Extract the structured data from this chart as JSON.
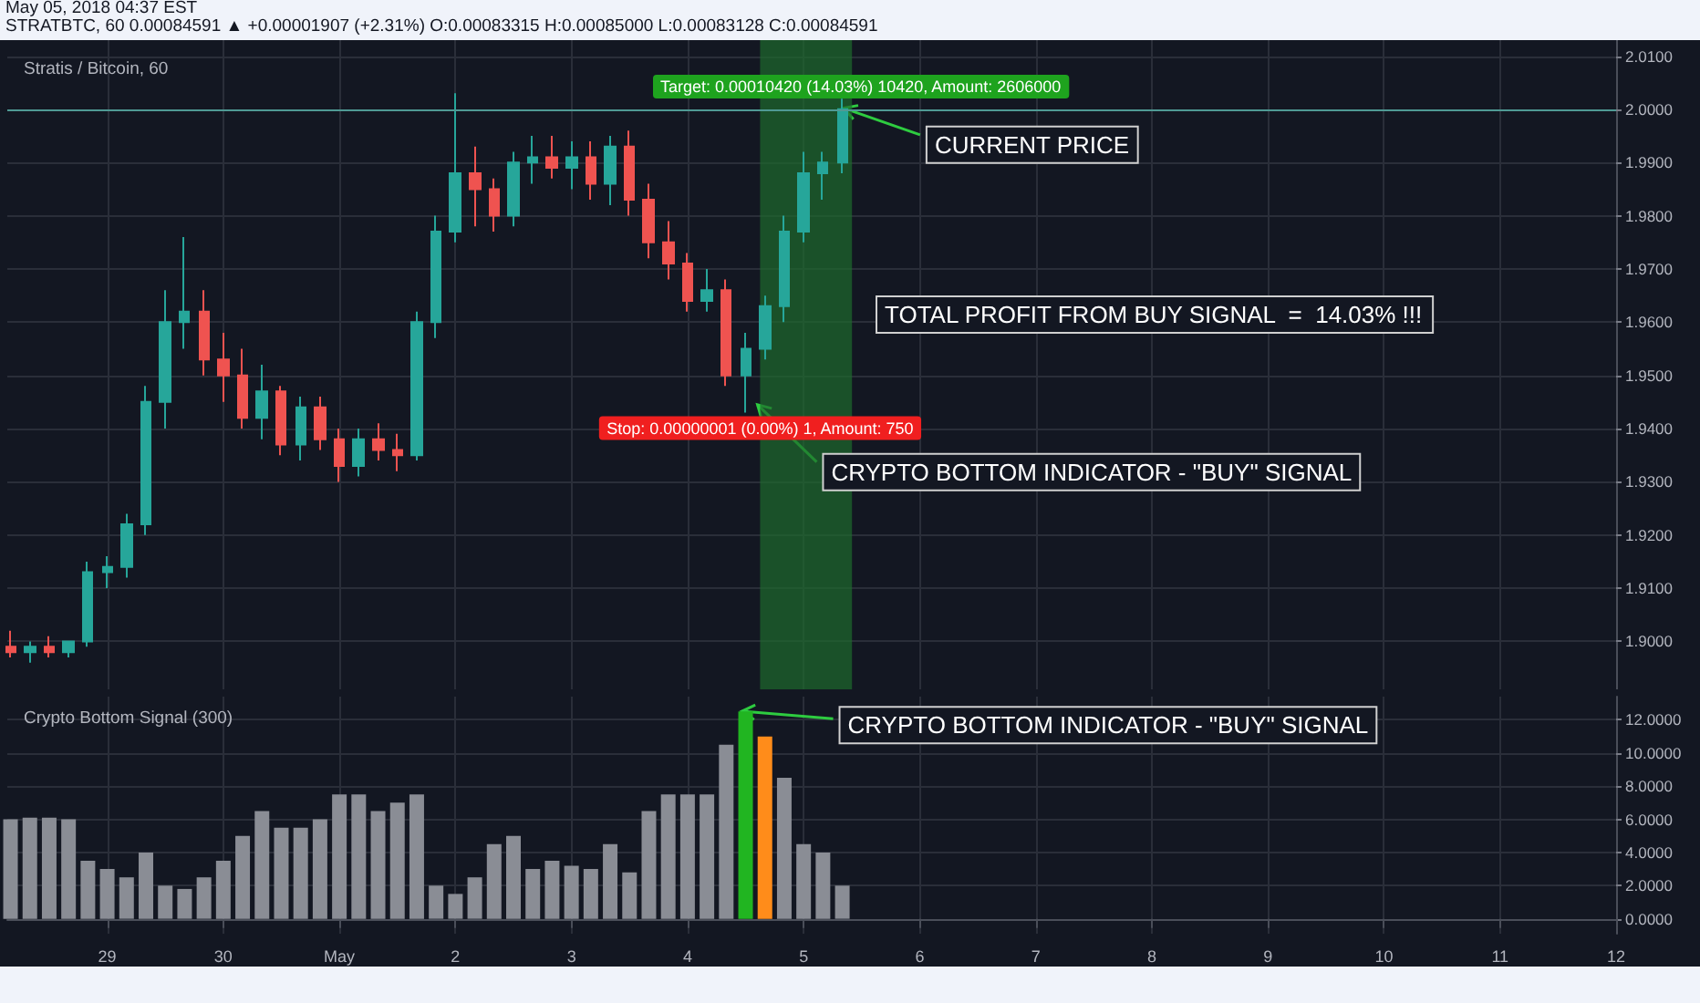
{
  "chart_data": [
    {
      "type": "candlestick",
      "title": "Stratis / Bitcoin, 60",
      "subtitle": "May 05, 2018 04:37 EST",
      "x": [
        "2018-04-28T04:00",
        "2018-04-28T08:00",
        "2018-04-28T12:00",
        "2018-04-28T16:00",
        "2018-04-28T20:00",
        "2018-04-29T00:00",
        "2018-04-29T04:00",
        "2018-04-29T08:00",
        "2018-04-29T12:00",
        "2018-04-29T16:00",
        "2018-04-29T20:00",
        "2018-04-30T00:00",
        "2018-04-30T04:00",
        "2018-04-30T08:00",
        "2018-04-30T12:00",
        "2018-04-30T16:00",
        "2018-04-30T20:00",
        "2018-05-01T00:00",
        "2018-05-01T04:00",
        "2018-05-01T08:00",
        "2018-05-01T12:00",
        "2018-05-01T16:00",
        "2018-05-01T20:00",
        "2018-05-02T00:00",
        "2018-05-02T04:00",
        "2018-05-02T08:00",
        "2018-05-02T12:00",
        "2018-05-02T16:00",
        "2018-05-02T20:00",
        "2018-05-03T00:00",
        "2018-05-03T04:00",
        "2018-05-03T08:00",
        "2018-05-03T12:00",
        "2018-05-03T16:00",
        "2018-05-03T20:00",
        "2018-05-04T00:00",
        "2018-05-04T04:00",
        "2018-05-04T08:00",
        "2018-05-04T12:00",
        "2018-05-04T16:00",
        "2018-05-04T20:00",
        "2018-05-05T00:00",
        "2018-05-05T04:00",
        "2018-05-05T08:00"
      ],
      "ohlc": [
        [
          1.899,
          1.902,
          1.897,
          1.898
        ],
        [
          1.898,
          1.9,
          1.896,
          1.899
        ],
        [
          1.899,
          1.901,
          1.897,
          1.898
        ],
        [
          1.898,
          1.9,
          1.897,
          1.9
        ],
        [
          1.9,
          1.915,
          1.899,
          1.913
        ],
        [
          1.913,
          1.916,
          1.91,
          1.914
        ],
        [
          1.914,
          1.924,
          1.912,
          1.922
        ],
        [
          1.922,
          1.948,
          1.92,
          1.945
        ],
        [
          1.945,
          1.966,
          1.94,
          1.96
        ],
        [
          1.96,
          1.976,
          1.955,
          1.962
        ],
        [
          1.962,
          1.966,
          1.95,
          1.953
        ],
        [
          1.953,
          1.958,
          1.945,
          1.95
        ],
        [
          1.95,
          1.955,
          1.94,
          1.942
        ],
        [
          1.942,
          1.952,
          1.938,
          1.947
        ],
        [
          1.947,
          1.948,
          1.935,
          1.937
        ],
        [
          1.937,
          1.946,
          1.934,
          1.944
        ],
        [
          1.944,
          1.946,
          1.936,
          1.938
        ],
        [
          1.938,
          1.94,
          1.93,
          1.933
        ],
        [
          1.933,
          1.94,
          1.931,
          1.938
        ],
        [
          1.938,
          1.941,
          1.934,
          1.936
        ],
        [
          1.936,
          1.939,
          1.932,
          1.935
        ],
        [
          1.935,
          1.962,
          1.934,
          1.96
        ],
        [
          1.96,
          1.98,
          1.957,
          1.977
        ],
        [
          1.977,
          2.003,
          1.975,
          1.988
        ],
        [
          1.988,
          1.993,
          1.978,
          1.985
        ],
        [
          1.985,
          1.987,
          1.977,
          1.98
        ],
        [
          1.98,
          1.992,
          1.978,
          1.99
        ],
        [
          1.99,
          1.995,
          1.986,
          1.991
        ],
        [
          1.991,
          1.995,
          1.987,
          1.989
        ],
        [
          1.989,
          1.994,
          1.985,
          1.991
        ],
        [
          1.991,
          1.994,
          1.983,
          1.986
        ],
        [
          1.986,
          1.995,
          1.982,
          1.993
        ],
        [
          1.993,
          1.996,
          1.98,
          1.983
        ],
        [
          1.983,
          1.986,
          1.972,
          1.975
        ],
        [
          1.975,
          1.979,
          1.968,
          1.971
        ],
        [
          1.971,
          1.973,
          1.962,
          1.964
        ],
        [
          1.964,
          1.97,
          1.962,
          1.966
        ],
        [
          1.966,
          1.968,
          1.948,
          1.95
        ],
        [
          1.95,
          1.958,
          1.943,
          1.955
        ],
        [
          1.955,
          1.965,
          1.953,
          1.963
        ],
        [
          1.963,
          1.98,
          1.96,
          1.977
        ],
        [
          1.977,
          1.992,
          1.975,
          1.988
        ],
        [
          1.988,
          1.992,
          1.983,
          1.99
        ],
        [
          1.99,
          2.002,
          1.988,
          2.0
        ]
      ],
      "colors": [
        "#ef5350",
        "#26a69a",
        "#ef5350",
        "#26a69a",
        "#26a69a",
        "#26a69a",
        "#26a69a",
        "#26a69a",
        "#26a69a",
        "#26a69a",
        "#ef5350",
        "#ef5350",
        "#ef5350",
        "#26a69a",
        "#ef5350",
        "#26a69a",
        "#ef5350",
        "#ef5350",
        "#26a69a",
        "#ef5350",
        "#ef5350",
        "#26a69a",
        "#26a69a",
        "#26a69a",
        "#ef5350",
        "#ef5350",
        "#26a69a",
        "#26a69a",
        "#ef5350",
        "#26a69a",
        "#ef5350",
        "#26a69a",
        "#ef5350",
        "#ef5350",
        "#ef5350",
        "#ef5350",
        "#26a69a",
        "#ef5350",
        "#26a69a",
        "#26a69a",
        "#26a69a",
        "#26a69a",
        "#26a69a",
        "#26a69a"
      ],
      "xlim": [
        "2018-04-28T03:20",
        "2018-05-12T00:00"
      ],
      "xticks": [
        {
          "value": "2018-04-29",
          "label": null
        },
        {
          "value": "2018-04-30",
          "label": null
        },
        {
          "value": "2018-05-01",
          "label": null
        },
        {
          "value": "2018-05-02",
          "label": null
        },
        {
          "value": "2018-05-03",
          "label": null
        },
        {
          "value": "2018-05-04",
          "label": null
        },
        {
          "value": "2018-05-05",
          "label": null
        },
        {
          "value": "2018-05-06",
          "label": null
        },
        {
          "value": "2018-05-07",
          "label": null
        },
        {
          "value": "2018-05-08",
          "label": null
        },
        {
          "value": "2018-05-09",
          "label": null
        },
        {
          "value": "2018-05-10",
          "label": null
        },
        {
          "value": "2018-05-11",
          "label": null
        }
      ],
      "ylim": [
        1.891,
        2.013
      ],
      "yticks": [
        {
          "value": 1.9,
          "label": "1.9000"
        },
        {
          "value": 1.91,
          "label": "1.9100"
        },
        {
          "value": 1.92,
          "label": "1.9200"
        },
        {
          "value": 1.93,
          "label": "1.9300"
        },
        {
          "value": 1.94,
          "label": "1.9400"
        },
        {
          "value": 1.95,
          "label": "1.9500"
        },
        {
          "value": 1.96,
          "label": "1.9600"
        },
        {
          "value": 1.97,
          "label": "1.9700"
        },
        {
          "value": 1.98,
          "label": "1.9800"
        },
        {
          "value": 1.99,
          "label": "1.9900"
        },
        {
          "value": 2.0,
          "label": "2.0000"
        },
        {
          "value": 2.01,
          "label": "2.0100"
        }
      ],
      "tick_labels": "y",
      "grid": true,
      "ref_lines": [
        {
          "axis": "y",
          "value": 2.0,
          "color": "#4f9a94"
        }
      ],
      "bands": [
        {
          "axis": "x",
          "from": "2018-05-04T15:00",
          "to": "2018-05-05T10:00",
          "color": "#1e6b2c"
        }
      ],
      "annotations": [
        "Target: 0.00010420 (14.03%) 10420, Amount: 2606000",
        {
          "text": "Stop: 0.00000001 (0.00%) 1, Amount: 750",
          "x": "2018-05-04T15:00",
          "y": 1.943
        },
        {
          "text": "CURRENT PRICE",
          "x": "2018-05-05T09:00",
          "y": 2.0
        },
        "TOTAL PROFIT FROM BUY SIGNAL  =  14.03% !!!",
        {
          "text": "CRYPTO BOTTOM INDICATOR - \"BUY\" SIGNAL",
          "x": "2018-05-04T15:00",
          "y": 1.944
        },
        "STRATBTC, 60 0.00084591 ▲ +0.00001907 (+2.31%) O:0.00083315 H:0.00085000 L:0.00083128 C:0.00084591"
      ]
    },
    {
      "type": "bar",
      "title": "Crypto Bottom Signal (300)",
      "x": [
        "2018-04-28T04:00",
        "2018-04-28T08:00",
        "2018-04-28T12:00",
        "2018-04-28T16:00",
        "2018-04-28T20:00",
        "2018-04-29T00:00",
        "2018-04-29T04:00",
        "2018-04-29T08:00",
        "2018-04-29T12:00",
        "2018-04-29T16:00",
        "2018-04-29T20:00",
        "2018-04-30T00:00",
        "2018-04-30T04:00",
        "2018-04-30T08:00",
        "2018-04-30T12:00",
        "2018-04-30T16:00",
        "2018-04-30T20:00",
        "2018-05-01T00:00",
        "2018-05-01T04:00",
        "2018-05-01T08:00",
        "2018-05-01T12:00",
        "2018-05-01T16:00",
        "2018-05-01T20:00",
        "2018-05-02T00:00",
        "2018-05-02T04:00",
        "2018-05-02T08:00",
        "2018-05-02T12:00",
        "2018-05-02T16:00",
        "2018-05-02T20:00",
        "2018-05-03T00:00",
        "2018-05-03T04:00",
        "2018-05-03T08:00",
        "2018-05-03T12:00",
        "2018-05-03T16:00",
        "2018-05-03T20:00",
        "2018-05-04T00:00",
        "2018-05-04T04:00",
        "2018-05-04T08:00",
        "2018-05-04T12:00",
        "2018-05-04T16:00",
        "2018-05-04T20:00",
        "2018-05-05T00:00",
        "2018-05-05T04:00",
        "2018-05-05T08:00"
      ],
      "values": [
        6.0,
        6.1,
        6.1,
        6.0,
        3.5,
        3.0,
        2.5,
        4.0,
        2.0,
        1.8,
        2.5,
        3.5,
        5.0,
        6.5,
        5.5,
        5.5,
        6.0,
        7.5,
        7.5,
        6.5,
        7.0,
        7.5,
        2.0,
        1.5,
        2.5,
        4.5,
        5.0,
        3.0,
        3.5,
        3.2,
        3.0,
        4.5,
        2.8,
        6.5,
        7.5,
        7.5,
        7.5,
        10.5,
        12.5,
        11.0,
        8.5,
        4.5,
        4.0,
        2.0
      ],
      "colors": [
        "#8a8d95",
        "#8a8d95",
        "#8a8d95",
        "#8a8d95",
        "#8a8d95",
        "#8a8d95",
        "#8a8d95",
        "#8a8d95",
        "#8a8d95",
        "#8a8d95",
        "#8a8d95",
        "#8a8d95",
        "#8a8d95",
        "#8a8d95",
        "#8a8d95",
        "#8a8d95",
        "#8a8d95",
        "#8a8d95",
        "#8a8d95",
        "#8a8d95",
        "#8a8d95",
        "#8a8d95",
        "#8a8d95",
        "#8a8d95",
        "#8a8d95",
        "#8a8d95",
        "#8a8d95",
        "#8a8d95",
        "#8a8d95",
        "#8a8d95",
        "#8a8d95",
        "#8a8d95",
        "#8a8d95",
        "#8a8d95",
        "#8a8d95",
        "#8a8d95",
        "#8a8d95",
        "#8a8d95",
        "#21b521",
        "#ff8c1a",
        "#8a8d95",
        "#8a8d95",
        "#8a8d95",
        "#8a8d95"
      ],
      "xlim": [
        "2018-04-28T03:20",
        "2018-05-12T00:00"
      ],
      "xticks": [
        {
          "value": "2018-04-29",
          "label": "29"
        },
        {
          "value": "2018-04-30",
          "label": "30"
        },
        {
          "value": "2018-05-01",
          "label": "May"
        },
        {
          "value": "2018-05-02",
          "label": "2"
        },
        {
          "value": "2018-05-03",
          "label": "3"
        },
        {
          "value": "2018-05-04",
          "label": "4"
        },
        {
          "value": "2018-05-05",
          "label": "5"
        },
        {
          "value": "2018-05-06",
          "label": "6"
        },
        {
          "value": "2018-05-07",
          "label": "7"
        },
        {
          "value": "2018-05-08",
          "label": "8"
        },
        {
          "value": "2018-05-09",
          "label": "9"
        },
        {
          "value": "2018-05-10",
          "label": "10"
        },
        {
          "value": "2018-05-11",
          "label": "11"
        },
        {
          "value": "2018-05-12",
          "label": "12"
        }
      ],
      "ylim": [
        -0.9,
        13.4
      ],
      "yticks": [
        {
          "value": 0,
          "label": "0.0000"
        },
        {
          "value": 2,
          "label": "2.0000"
        },
        {
          "value": 4,
          "label": "4.0000"
        },
        {
          "value": 6,
          "label": "6.0000"
        },
        {
          "value": 8,
          "label": "8.0000"
        },
        {
          "value": 10,
          "label": "10.0000"
        },
        {
          "value": 12,
          "label": "12.0000"
        }
      ],
      "grid": true,
      "annotations": [
        {
          "text": "CRYPTO BOTTOM INDICATOR - \"BUY\" SIGNAL",
          "x": "2018-05-04T12:00",
          "y": 12.5
        }
      ]
    }
  ]
}
